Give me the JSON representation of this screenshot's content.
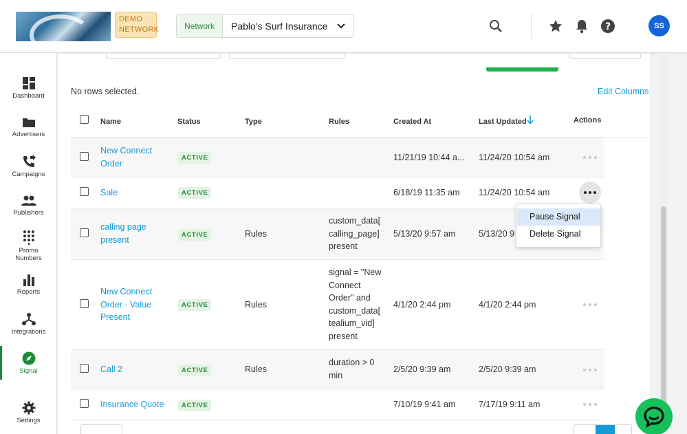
{
  "header": {
    "demo_badge": "DEMO NETWORK",
    "network_label": "Network",
    "network_value": "Pablo's Surf Insurance",
    "avatar_initials": "SS"
  },
  "sidebar": {
    "items": [
      {
        "label": "Dashboard",
        "icon": "dashboard-icon"
      },
      {
        "label": "Advertisers",
        "icon": "folder-icon"
      },
      {
        "label": "Campaigns",
        "icon": "phone-forward-icon"
      },
      {
        "label": "Publishers",
        "icon": "people-icon"
      },
      {
        "label": "Promo Numbers",
        "icon": "dialpad-icon"
      },
      {
        "label": "Reports",
        "icon": "bar-chart-icon"
      },
      {
        "label": "Integrations",
        "icon": "hub-icon"
      },
      {
        "label": "Signal",
        "icon": "compass-icon",
        "active": true
      },
      {
        "label": "Settings",
        "icon": "gear-icon"
      }
    ]
  },
  "table": {
    "selection_text": "No rows selected.",
    "edit_columns": "Edit Columns",
    "columns": [
      "Name",
      "Status",
      "Type",
      "Rules",
      "Created At",
      "Last Updated",
      "Actions"
    ],
    "rows": [
      {
        "name": "New Connect Order",
        "status": "ACTIVE",
        "type": "",
        "rules": "",
        "created": "11/21/19 10:44 a...",
        "updated": "11/24/20 10:54 am"
      },
      {
        "name": "Sale",
        "status": "ACTIVE",
        "type": "",
        "rules": "",
        "created": "6/18/19 11:35 am",
        "updated": "11/24/20 10:54 am"
      },
      {
        "name": "calling page present",
        "status": "ACTIVE",
        "type": "Rules",
        "rules": "custom_data[ calling_page] present",
        "created": "5/13/20 9:57 am",
        "updated": "5/13/20 9"
      },
      {
        "name": "New Connect Order - Value Present",
        "status": "ACTIVE",
        "type": "Rules",
        "rules": "signal = \"New Connect Order\" and custom_data[ tealium_vid] present",
        "created": "4/1/20 2:44 pm",
        "updated": "4/1/20 2:44 pm"
      },
      {
        "name": "Call 2",
        "status": "ACTIVE",
        "type": "Rules",
        "rules": "duration > 0 min",
        "created": "2/5/20 9:39 am",
        "updated": "2/5/20 9:39 am"
      },
      {
        "name": "Insurance Quote",
        "status": "ACTIVE",
        "type": "",
        "rules": "",
        "created": "7/10/19 9:41 am",
        "updated": "7/17/19 9:11 am"
      }
    ]
  },
  "action_menu": {
    "items": [
      "Pause Signal",
      "Delete Signal"
    ]
  },
  "colors": {
    "accent_green": "#1f8a3a",
    "link_blue": "#139bd8",
    "avatar_blue": "#1565d8",
    "chat_green": "#16c15b"
  }
}
